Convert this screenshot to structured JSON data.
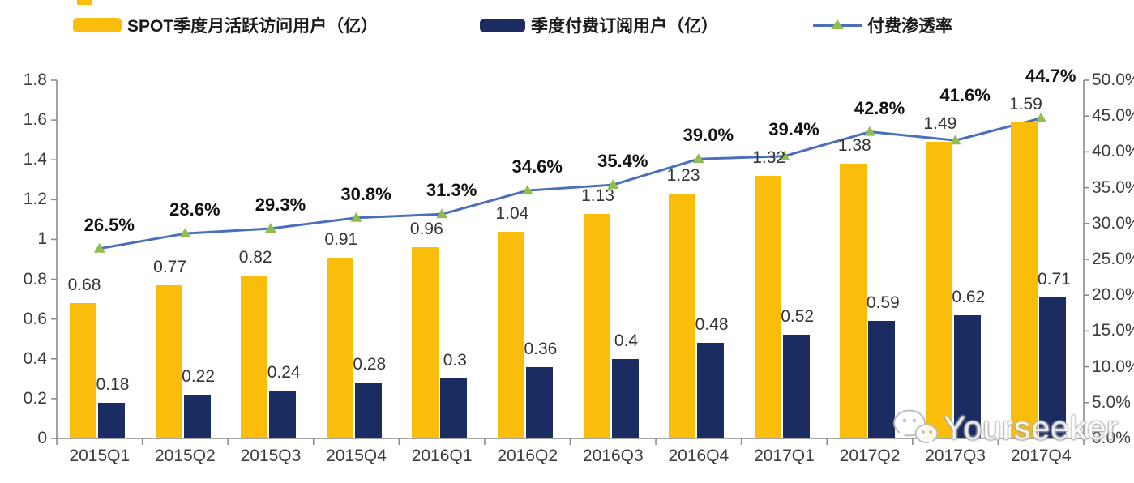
{
  "colors": {
    "mau_bar": "#FBBD0B",
    "subs_bar": "#1B2C62",
    "line": "#4A6FBC",
    "marker": "#8FBE4F",
    "axis": "#8C8C8C"
  },
  "legend": {
    "items": [
      {
        "label": "SPOT季度月活跃访问用户（亿）"
      },
      {
        "label": "季度付费订阅用户（亿）"
      },
      {
        "label": "付费渗透率"
      }
    ]
  },
  "chart_data": {
    "type": "bar",
    "subtype": "combo-bar-line",
    "categories": [
      "2015Q1",
      "2015Q2",
      "2015Q3",
      "2015Q4",
      "2016Q1",
      "2016Q2",
      "2016Q3",
      "2016Q4",
      "2017Q1",
      "2017Q2",
      "2017Q3",
      "2017Q4"
    ],
    "series": [
      {
        "name": "SPOT季度月活跃访问用户（亿）",
        "type": "bar",
        "axis": "left",
        "color": "#FBBD0B",
        "values": [
          0.68,
          0.77,
          0.82,
          0.91,
          0.96,
          1.04,
          1.13,
          1.23,
          1.32,
          1.38,
          1.49,
          1.59
        ],
        "labels": [
          "0.68",
          "0.77",
          "0.82",
          "0.91",
          "0.96",
          "1.04",
          "1.13",
          "1.23",
          "1.32",
          "1.38",
          "1.49",
          "1.59"
        ]
      },
      {
        "name": "季度付费订阅用户（亿）",
        "type": "bar",
        "axis": "left",
        "color": "#1B2C62",
        "values": [
          0.18,
          0.22,
          0.24,
          0.28,
          0.3,
          0.36,
          0.4,
          0.48,
          0.52,
          0.59,
          0.62,
          0.71
        ],
        "labels": [
          "0.18",
          "0.22",
          "0.24",
          "0.28",
          "0.3",
          "0.36",
          "0.4",
          "0.48",
          "0.52",
          "0.59",
          "0.62",
          "0.71"
        ]
      },
      {
        "name": "付费渗透率",
        "type": "line",
        "axis": "right",
        "color": "#4A6FBC",
        "marker": "triangle",
        "marker_color": "#8FBE4F",
        "values": [
          26.5,
          28.6,
          29.3,
          30.8,
          31.3,
          34.6,
          35.4,
          39.0,
          39.4,
          42.8,
          41.6,
          44.7
        ],
        "labels": [
          "26.5%",
          "28.6%",
          "29.3%",
          "30.8%",
          "31.3%",
          "34.6%",
          "35.4%",
          "39.0%",
          "39.4%",
          "42.8%",
          "41.6%",
          "44.7%"
        ]
      }
    ],
    "left_axis": {
      "min": 0,
      "max": 1.8,
      "tick_labels": [
        "1.8",
        "1.6",
        "1.4",
        "1.2",
        "1",
        "0.8",
        "0.6",
        "0.4",
        "0.2",
        "0"
      ]
    },
    "right_axis": {
      "min": 0,
      "max": 50,
      "tick_labels": [
        "50.0%",
        "45.0%",
        "40.0%",
        "35.0%",
        "30.0%",
        "25.0%",
        "20.0%",
        "15.0%",
        "10.0%",
        "5.0%",
        "0.0%"
      ]
    },
    "grid": false,
    "legend_position": "top"
  },
  "watermark": {
    "text": "Yourseeker",
    "icon": "wechat-icon"
  }
}
